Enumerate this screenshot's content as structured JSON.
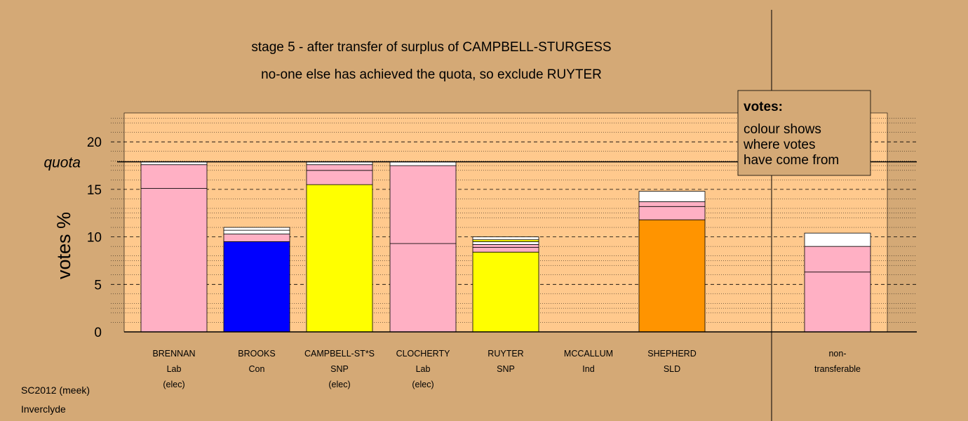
{
  "chart_data": {
    "type": "bar",
    "stacked": true,
    "title": "stage 5 - after transfer of surplus of CAMPBELL-STURGESS",
    "subtitle": "no-one else has achieved the quota, so exclude RUYTER",
    "ylabel": "votes %",
    "ylim": [
      0,
      23
    ],
    "yticks": [
      0,
      5,
      10,
      15,
      20
    ],
    "quota": 17.9,
    "quota_label": "quota",
    "grid": "horizontal dashed and dotted lines",
    "categories": [
      {
        "name": "BRENNAN",
        "party": "Lab",
        "status": "(elec)"
      },
      {
        "name": "BROOKS",
        "party": "Con",
        "status": ""
      },
      {
        "name": "CAMPBELL-ST*S",
        "party": "SNP",
        "status": "(elec)"
      },
      {
        "name": "CLOCHERTY",
        "party": "Lab",
        "status": "(elec)"
      },
      {
        "name": "RUYTER",
        "party": "SNP",
        "status": ""
      },
      {
        "name": "MCCALLUM",
        "party": "Ind",
        "status": ""
      },
      {
        "name": "SHEPHERD",
        "party": "SLD",
        "status": ""
      },
      {
        "name": "",
        "party": "",
        "status": ""
      },
      {
        "name": "non-",
        "party": "transferable",
        "status": ""
      }
    ],
    "stacks": [
      [
        {
          "value": 15.1,
          "color": "#ffb0c4"
        },
        {
          "value": 2.5,
          "color": "#ffb0c4"
        },
        {
          "value": 0.3,
          "color": "#ffffff"
        }
      ],
      [
        {
          "value": 9.5,
          "color": "#0000ff"
        },
        {
          "value": 0.8,
          "color": "#ffb0c4"
        },
        {
          "value": 0.4,
          "color": "#ffffff"
        },
        {
          "value": 0.3,
          "color": "#ffffff"
        }
      ],
      [
        {
          "value": 15.5,
          "color": "#ffff00"
        },
        {
          "value": 1.5,
          "color": "#ffb0c4"
        },
        {
          "value": 0.6,
          "color": "#ffb0c4"
        },
        {
          "value": 0.3,
          "color": "#ffffff"
        }
      ],
      [
        {
          "value": 9.3,
          "color": "#ffb0c4"
        },
        {
          "value": 8.2,
          "color": "#ffb0c4"
        },
        {
          "value": 0.4,
          "color": "#ffffff"
        }
      ],
      [
        {
          "value": 8.4,
          "color": "#ffff00"
        },
        {
          "value": 0.5,
          "color": "#ffb0c4"
        },
        {
          "value": 0.3,
          "color": "#ffb0c4"
        },
        {
          "value": 0.3,
          "color": "#ffffff"
        },
        {
          "value": 0.2,
          "color": "#ffff00"
        },
        {
          "value": 0.3,
          "color": "#ffffff"
        }
      ],
      [],
      [
        {
          "value": 11.8,
          "color": "#ff9400"
        },
        {
          "value": 1.4,
          "color": "#ffb0c4"
        },
        {
          "value": 0.5,
          "color": "#ffb0c4"
        },
        {
          "value": 1.1,
          "color": "#ffffff"
        }
      ],
      [],
      [
        {
          "value": 6.3,
          "color": "#ffb0c4"
        },
        {
          "value": 2.7,
          "color": "#ffb0c4"
        },
        {
          "value": 1.4,
          "color": "#ffffff"
        }
      ]
    ],
    "legend": {
      "title": "votes:",
      "lines": [
        "colour shows",
        "where votes",
        "have come from"
      ],
      "position": "top-right"
    }
  },
  "footer": {
    "line1": "SC2012 (meek)",
    "line2": "Inverclyde"
  },
  "colors": {
    "background": "#d4a976",
    "plot_background": "#ffc98d",
    "legend_background": "#d4a976"
  }
}
